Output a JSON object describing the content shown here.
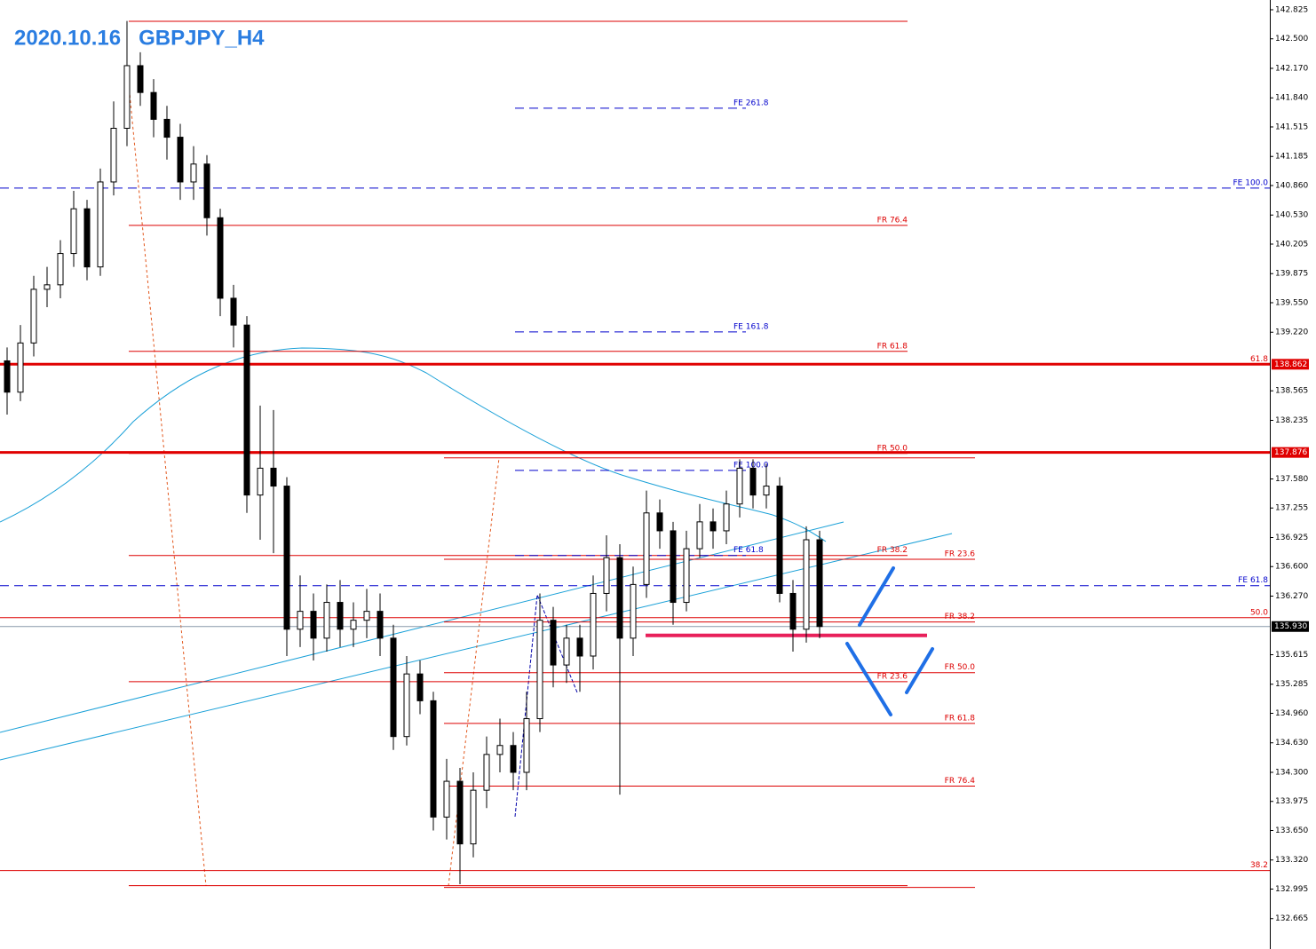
{
  "chart_data": {
    "type": "candlestick",
    "title": "2020.10.16   GBPJPY_H4",
    "ylim": [
      132.325,
      142.934
    ],
    "yticks": [
      142.825,
      {
        "value": 142.5,
        "label": "142.500"
      },
      {
        "value": 142.17,
        "label": "142.170"
      },
      {
        "value": 141.84,
        "label": "141.840"
      },
      141.515,
      141.185,
      {
        "value": 140.86,
        "label": "140.860"
      },
      {
        "value": 140.53,
        "label": "140.530"
      },
      140.205,
      139.875,
      {
        "value": 139.55,
        "label": "139.550"
      },
      {
        "value": 139.22,
        "label": "139.220"
      },
      138.565,
      138.235,
      {
        "value": 137.58,
        "label": "137.580"
      },
      137.255,
      136.925,
      {
        "value": 136.6,
        "label": "136.600"
      },
      {
        "value": 136.27,
        "label": "136.270"
      },
      135.615,
      135.285,
      {
        "value": 134.96,
        "label": "134.960"
      },
      {
        "value": 134.63,
        "label": "134.630"
      },
      {
        "value": 134.3,
        "label": "134.300"
      },
      133.975,
      {
        "value": 133.65,
        "label": "133.650"
      },
      {
        "value": 133.32,
        "label": "133.320"
      },
      132.995,
      132.665
    ],
    "bull_color": "#ffffff",
    "bear_color": "#000000",
    "open": [
      138.9,
      138.55,
      139.1,
      139.7,
      139.75,
      140.1,
      140.6,
      139.95,
      140.9,
      141.5,
      142.2,
      141.9,
      141.6,
      141.4,
      140.9,
      141.1,
      140.5,
      139.6,
      139.3,
      137.4,
      137.7,
      137.5,
      135.9,
      136.1,
      135.8,
      136.2,
      135.9,
      136.0,
      136.1,
      135.8,
      134.7,
      135.4,
      135.1,
      133.8,
      134.2,
      133.5,
      134.1,
      134.5,
      134.6,
      134.3,
      134.9,
      136.0,
      135.5,
      135.8,
      135.6,
      136.3,
      136.7,
      135.8,
      136.4,
      137.2,
      137.0,
      136.2,
      136.8,
      137.1,
      137.0,
      137.3,
      137.7,
      137.4,
      137.5,
      136.3,
      135.9,
      136.9
    ],
    "high": [
      139.05,
      139.3,
      139.85,
      139.95,
      140.25,
      140.8,
      140.7,
      141.05,
      141.8,
      142.7,
      142.35,
      142.05,
      141.75,
      141.55,
      141.3,
      141.2,
      140.6,
      139.75,
      139.4,
      138.4,
      138.35,
      137.6,
      136.5,
      136.3,
      136.4,
      136.45,
      136.2,
      136.35,
      136.3,
      135.95,
      135.6,
      135.55,
      135.2,
      134.45,
      134.35,
      134.3,
      134.7,
      134.9,
      134.75,
      135.2,
      136.3,
      136.15,
      135.95,
      135.95,
      136.5,
      136.95,
      136.85,
      136.6,
      137.45,
      137.35,
      137.1,
      137.0,
      137.3,
      137.25,
      137.45,
      137.8,
      137.8,
      137.75,
      137.6,
      136.45,
      137.05,
      137.0
    ],
    "low": [
      138.3,
      138.45,
      138.95,
      139.5,
      139.6,
      139.95,
      139.8,
      139.85,
      140.75,
      141.3,
      141.75,
      141.4,
      141.15,
      140.7,
      140.7,
      140.3,
      139.4,
      139.05,
      137.2,
      136.9,
      136.75,
      135.6,
      135.7,
      135.55,
      135.65,
      135.7,
      135.7,
      135.8,
      135.6,
      134.55,
      134.6,
      134.95,
      133.65,
      133.55,
      133.05,
      133.35,
      133.9,
      134.3,
      134.1,
      134.1,
      134.75,
      135.25,
      135.3,
      135.2,
      135.45,
      136.1,
      134.05,
      135.6,
      136.25,
      136.8,
      135.95,
      136.1,
      136.7,
      136.8,
      136.85,
      137.15,
      137.25,
      137.25,
      136.2,
      135.65,
      135.75,
      135.8
    ],
    "close": [
      138.55,
      139.1,
      139.7,
      139.75,
      140.1,
      140.6,
      139.95,
      140.9,
      141.5,
      142.2,
      141.9,
      141.6,
      141.4,
      140.9,
      141.1,
      140.5,
      139.6,
      139.3,
      137.4,
      137.7,
      137.5,
      135.9,
      136.1,
      135.8,
      136.2,
      135.9,
      136.0,
      136.1,
      135.8,
      134.7,
      135.4,
      135.1,
      133.8,
      134.2,
      133.5,
      134.1,
      134.5,
      134.6,
      134.3,
      134.9,
      136.0,
      135.5,
      135.8,
      135.6,
      136.3,
      136.7,
      135.8,
      136.4,
      137.2,
      137.0,
      136.2,
      136.8,
      137.1,
      137.0,
      137.3,
      137.7,
      137.4,
      137.5,
      136.3,
      135.9,
      136.9,
      135.93
    ],
    "retracement_a": [
      {
        "price": 142.696
      },
      {
        "price": 140.414,
        "label": "FR  76.4"
      },
      {
        "price": 139.006,
        "label": "FR 61.8"
      },
      {
        "price": 137.865,
        "label": "FR 50.0"
      },
      {
        "price": 136.724,
        "label": "FR 38.2"
      },
      {
        "price": 135.313,
        "label": "FR 23.6"
      },
      {
        "price": 133.033
      }
    ],
    "retracement_b": [
      {
        "price": 137.815
      },
      {
        "price": 136.682,
        "label": "FR 23.6"
      },
      {
        "price": 135.981,
        "label": "FR 38.2"
      },
      {
        "price": 135.414,
        "label": "FR 50.0"
      },
      {
        "price": 134.847,
        "label": "FR 61.8"
      },
      {
        "price": 134.146,
        "label": "FR  76.4"
      },
      {
        "price": 133.013
      }
    ],
    "expansion": [
      {
        "price": 141.724,
        "label": "FE  261.8"
      },
      {
        "price": 139.224,
        "label": "FE 161.8"
      },
      {
        "price": 137.676,
        "label": "FE 100.0"
      },
      {
        "price": 136.724,
        "label": "FE 61.8"
      }
    ],
    "full_levels": [
      {
        "price": 140.831,
        "label": "FE 100.0",
        "color": "#0000cc",
        "dashed": true
      },
      {
        "price": 136.387,
        "label": "FE 61.8",
        "color": "#0000cc",
        "dashed": true
      },
      {
        "price": 136.029,
        "label": "50.0",
        "color": "#dd0000",
        "dashed": false
      },
      {
        "price": 133.202,
        "label": "38.2",
        "color": "#dd0000",
        "dashed": false
      }
    ],
    "key_levels": [
      {
        "price": 138.862,
        "label": "61.8"
      },
      {
        "price": 137.876
      }
    ],
    "current_price": {
      "value": 135.93,
      "label": "135.930"
    },
    "support": 135.831
  }
}
